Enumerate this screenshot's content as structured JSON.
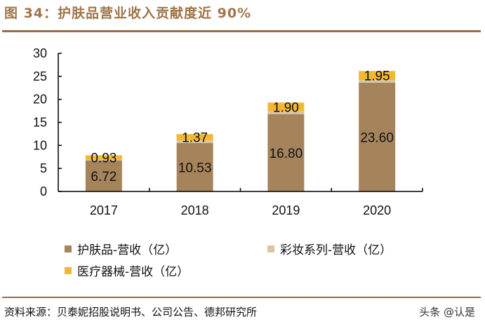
{
  "title": "图 34：护肤品营业收入贡献度近 90%",
  "source": "资料来源：贝泰妮招股说明书、公司公告、德邦研究所",
  "watermark": "头条 @认是",
  "chart_data": {
    "type": "bar",
    "stacked": true,
    "categories": [
      "2017",
      "2018",
      "2019",
      "2020"
    ],
    "ylim": [
      0,
      30
    ],
    "yticks": [
      "0",
      "5",
      "10",
      "15",
      "20",
      "25",
      "30"
    ],
    "grid": false,
    "legend_position": "bottom",
    "series": [
      {
        "name": "护肤品-营收（亿）",
        "values": [
          6.72,
          10.53,
          16.8,
          23.6
        ],
        "labels": [
          "6.72",
          "10.53",
          "16.80",
          "23.60"
        ],
        "color": "#A6845B"
      },
      {
        "name": "彩妆系列-营收（亿）",
        "values": [
          0.2,
          0.55,
          0.6,
          0.6
        ],
        "color": "#D8C6A0"
      },
      {
        "name": "医疗器械-营收（亿）",
        "values": [
          0.93,
          1.37,
          1.9,
          1.95
        ],
        "labels": [
          "0.93",
          "1.37",
          "1.90",
          "1.95"
        ],
        "color": "#F4B731"
      }
    ]
  }
}
